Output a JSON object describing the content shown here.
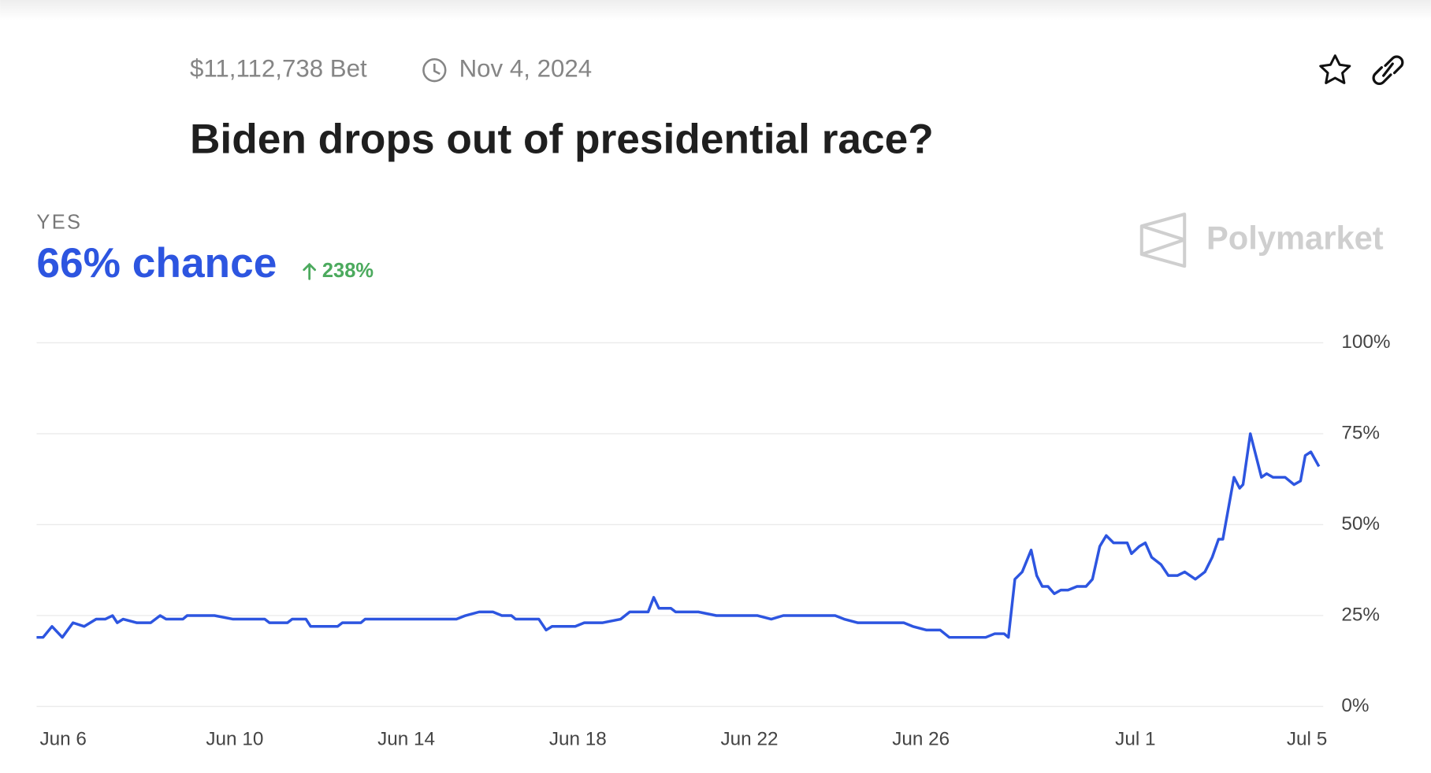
{
  "header": {
    "volume": "$11,112,738 Bet",
    "date": "Nov 4, 2024",
    "brand": "Polymarket"
  },
  "chart_data": {
    "type": "line",
    "title": "Biden drops out of presidential race?",
    "outcome": "YES",
    "current_label": "66% chance",
    "change": "238%",
    "xlim": [
      -0.62,
      29.38
    ],
    "xticks": [
      {
        "value": 0,
        "label": "Jun 6"
      },
      {
        "value": 4,
        "label": "Jun 10"
      },
      {
        "value": 8,
        "label": "Jun 14"
      },
      {
        "value": 12,
        "label": "Jun 18"
      },
      {
        "value": 16,
        "label": "Jun 22"
      },
      {
        "value": 20,
        "label": "Jun 26"
      },
      {
        "value": 25,
        "label": "Jul 1"
      },
      {
        "value": 29,
        "label": "Jul 5"
      }
    ],
    "ylim": [
      0,
      100
    ],
    "yticks": [
      {
        "value": 0,
        "label": "0%"
      },
      {
        "value": 25,
        "label": "25%"
      },
      {
        "value": 50,
        "label": "50%"
      },
      {
        "value": 75,
        "label": "75%"
      },
      {
        "value": 100,
        "label": "100%"
      }
    ],
    "grid": true,
    "x": [
      -0.62,
      -0.47,
      -0.26,
      -0.02,
      0.23,
      0.49,
      0.77,
      0.98,
      1.15,
      1.26,
      1.4,
      1.72,
      2.04,
      2.26,
      2.4,
      2.79,
      2.89,
      3.53,
      3.96,
      4.7,
      4.81,
      5.23,
      5.34,
      5.66,
      5.77,
      6.4,
      6.51,
      6.94,
      7.04,
      9.17,
      9.38,
      9.7,
      10.02,
      10.23,
      10.45,
      10.55,
      11.09,
      11.26,
      11.4,
      11.94,
      12.15,
      12.57,
      13.0,
      13.21,
      13.64,
      13.77,
      13.89,
      14.17,
      14.28,
      14.7,
      14.81,
      15.23,
      16.19,
      16.51,
      16.79,
      18.0,
      18.21,
      18.53,
      18.74,
      19.6,
      19.81,
      20.13,
      20.45,
      20.66,
      20.87,
      21.51,
      21.72,
      21.94,
      22.04,
      22.19,
      22.36,
      22.57,
      22.7,
      22.83,
      22.96,
      23.11,
      23.26,
      23.43,
      23.64,
      23.85,
      24.0,
      24.17,
      24.32,
      24.49,
      24.7,
      24.81,
      24.91,
      25.09,
      25.23,
      25.38,
      25.6,
      25.77,
      25.98,
      26.15,
      26.4,
      26.62,
      26.79,
      26.94,
      27.04,
      27.3,
      27.43,
      27.51,
      27.68,
      27.94,
      28.06,
      28.21,
      28.49,
      28.7,
      28.85,
      28.96,
      29.09,
      29.28
    ],
    "series": [
      {
        "name": "Yes",
        "color": "#2d55e0",
        "values": [
          19,
          19,
          22,
          19,
          23,
          22,
          24,
          24,
          25,
          23,
          24,
          23,
          23,
          25,
          24,
          24,
          25,
          25,
          24,
          24,
          23,
          23,
          24,
          24,
          22,
          22,
          23,
          23,
          24,
          24,
          25,
          26,
          26,
          25,
          25,
          24,
          24,
          21,
          22,
          22,
          23,
          23,
          24,
          26,
          26,
          30,
          27,
          27,
          26,
          26,
          26,
          25,
          25,
          24,
          25,
          25,
          24,
          23,
          23,
          23,
          22,
          21,
          21,
          19,
          19,
          19,
          20,
          20,
          19,
          35,
          37,
          43,
          36,
          33,
          33,
          31,
          32,
          32,
          33,
          33,
          35,
          44,
          47,
          45,
          45,
          45,
          42,
          44,
          45,
          41,
          39,
          36,
          36,
          37,
          35,
          37,
          41,
          46,
          46,
          63,
          60,
          61,
          75,
          63,
          64,
          63,
          63,
          61,
          62,
          69,
          70,
          66
        ]
      }
    ]
  }
}
